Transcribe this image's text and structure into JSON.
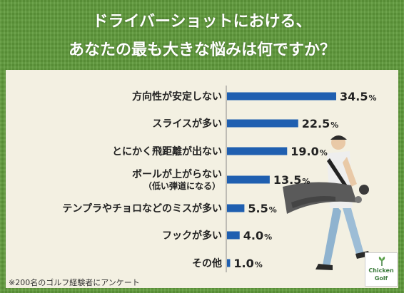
{
  "header": {
    "title_line1": "ドライバーショットにおける、",
    "title_line2": "あなたの最も大きな悩みは何ですか？"
  },
  "footnote": "※200名のゴルフ経験者にアンケート",
  "logo": {
    "line1": "Chicken",
    "line2": "Golf"
  },
  "colors": {
    "bar": "#1f5fb0",
    "panel": "#f3f0e2",
    "grass": "#5f9a3a"
  },
  "chart_data": {
    "type": "bar",
    "orientation": "horizontal",
    "categories": [
      "方向性が安定しない",
      "スライスが多い",
      "とにかく飛距離が出ない",
      "ボールが上がらない",
      "テンプラやチョロなどのミスが多い",
      "フックが多い",
      "その他"
    ],
    "category_notes": [
      "",
      "",
      "",
      "（低い弾道になる）",
      "",
      "",
      ""
    ],
    "values": [
      34.5,
      22.5,
      19.0,
      13.5,
      5.5,
      4.0,
      1.0
    ],
    "value_labels": [
      "34.5",
      "22.5",
      "19.0",
      "13.5",
      "5.5",
      "4.0",
      "1.0"
    ],
    "unit": "%",
    "xlim": [
      0,
      34.5
    ]
  }
}
